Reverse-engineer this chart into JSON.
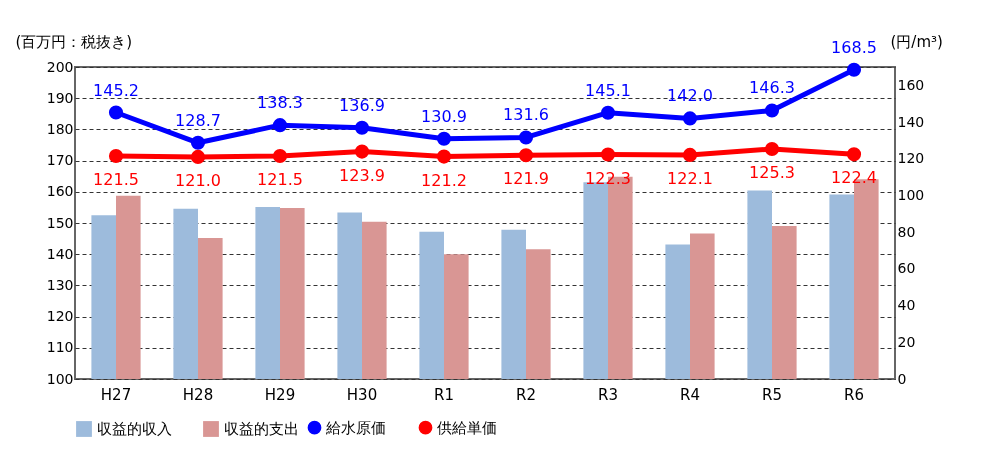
{
  "chart_data": {
    "type": "bar",
    "ylabel": "(百万円：税抜き)",
    "y2label": "(円/m³)",
    "categories": [
      "H27",
      "H28",
      "H29",
      "H30",
      "R1",
      "R2",
      "R3",
      "R4",
      "R5",
      "R6"
    ],
    "ylim": [
      100,
      200
    ],
    "yticks": [
      100,
      110,
      120,
      130,
      140,
      150,
      160,
      170,
      180,
      190,
      200
    ],
    "y2lim": [
      0,
      170
    ],
    "y2ticks": [
      0,
      20,
      40,
      60,
      80,
      100,
      120,
      140,
      160
    ],
    "grid": "y",
    "legend": "bottom",
    "series": [
      {
        "name": "収益的収入",
        "color": "#9dbbdc",
        "values": [
          152.5,
          154.6,
          155.1,
          153.4,
          147.2,
          147.8,
          163.1,
          143.1,
          160.4,
          159.1
        ]
      },
      {
        "name": "収益的支出",
        "color": "#d99694",
        "values": [
          158.7,
          145.2,
          154.8,
          150.4,
          140.0,
          141.6,
          164.8,
          146.6,
          149.0,
          164.0
        ]
      },
      {
        "name": "給水原価",
        "type": "line",
        "axis": "y2",
        "marker": "circle",
        "color": "#0000ff",
        "values": [
          145.2,
          128.7,
          138.3,
          136.9,
          130.9,
          131.6,
          145.1,
          142.0,
          146.3,
          168.5
        ],
        "value_labels": [
          "145.2",
          "128.7",
          "138.3",
          "136.9",
          "130.9",
          "131.6",
          "145.1",
          "142.0",
          "146.3",
          "168.5"
        ]
      },
      {
        "name": "供給単価",
        "type": "line",
        "axis": "y2",
        "marker": "circle",
        "color": "#ff0000",
        "values": [
          121.5,
          121.0,
          121.5,
          123.9,
          121.2,
          121.9,
          122.3,
          122.1,
          125.3,
          122.4
        ],
        "value_labels": [
          "121.5",
          "121.0",
          "121.5",
          "123.9",
          "121.2",
          "121.9",
          "122.3",
          "122.1",
          "125.3",
          "122.4"
        ]
      }
    ]
  }
}
